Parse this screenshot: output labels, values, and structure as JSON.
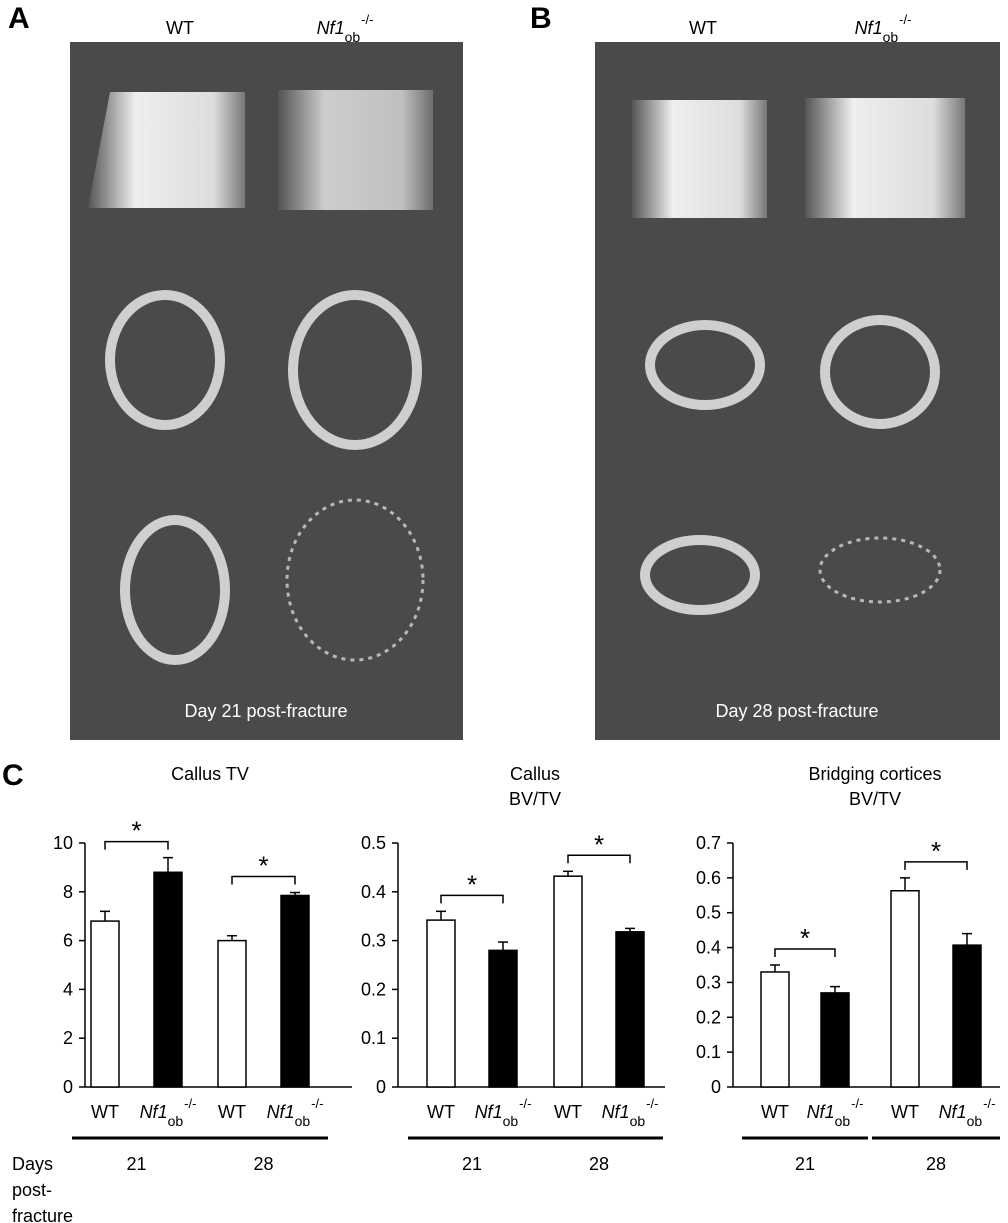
{
  "panels": [
    {
      "label": "A",
      "columns": [
        "WT",
        {
          "gene": "Nf1",
          "sub": "ob",
          "sup": "-/-"
        }
      ],
      "caption": "Day 21 post-fracture"
    },
    {
      "label": "B",
      "columns": [
        "WT",
        {
          "gene": "Nf1",
          "sub": "ob",
          "sup": "-/-"
        }
      ],
      "caption": "Day 28 post-fracture"
    }
  ],
  "panel_c_label": "C",
  "days_label": [
    "Days",
    "post-",
    "fracture"
  ],
  "chart_data": [
    {
      "type": "bar",
      "title": [
        "Callus TV"
      ],
      "categories": [
        "WT",
        {
          "gene": "Nf1",
          "sub": "ob",
          "sup": "-/-"
        },
        "WT",
        {
          "gene": "Nf1",
          "sub": "ob",
          "sup": "-/-"
        }
      ],
      "values": [
        6.8,
        8.8,
        6.0,
        7.85
      ],
      "errors": [
        0.4,
        0.6,
        0.2,
        0.12
      ],
      "colors": [
        "#ffffff",
        "#000000",
        "#ffffff",
        "#000000"
      ],
      "groups": [
        "21",
        "28"
      ],
      "significance": [
        "*",
        "*"
      ],
      "ylim": [
        0,
        10
      ],
      "yticks": [
        0,
        2,
        4,
        6,
        8,
        10
      ]
    },
    {
      "type": "bar",
      "title": [
        "Callus",
        "BV/TV"
      ],
      "categories": [
        "WT",
        {
          "gene": "Nf1",
          "sub": "ob",
          "sup": "-/-"
        },
        "WT",
        {
          "gene": "Nf1",
          "sub": "ob",
          "sup": "-/-"
        }
      ],
      "values": [
        0.342,
        0.28,
        0.432,
        0.318
      ],
      "errors": [
        0.018,
        0.017,
        0.01,
        0.007
      ],
      "colors": [
        "#ffffff",
        "#000000",
        "#ffffff",
        "#000000"
      ],
      "groups": [
        "21",
        "28"
      ],
      "significance": [
        "*",
        "*"
      ],
      "ylim": [
        0,
        0.5
      ],
      "yticks": [
        0,
        0.1,
        0.2,
        0.3,
        0.4,
        0.5
      ]
    },
    {
      "type": "bar",
      "title": [
        "Bridging cortices",
        "BV/TV"
      ],
      "categories": [
        "WT",
        {
          "gene": "Nf1",
          "sub": "ob",
          "sup": "-/-"
        },
        "WT",
        {
          "gene": "Nf1",
          "sub": "ob",
          "sup": "-/-"
        }
      ],
      "values": [
        0.33,
        0.27,
        0.563,
        0.407
      ],
      "errors": [
        0.02,
        0.018,
        0.037,
        0.033
      ],
      "colors": [
        "#ffffff",
        "#000000",
        "#ffffff",
        "#000000"
      ],
      "groups": [
        "21",
        "28"
      ],
      "significance": [
        "*",
        "*"
      ],
      "ylim": [
        0,
        0.7
      ],
      "yticks": [
        0,
        0.1,
        0.2,
        0.3,
        0.4,
        0.5,
        0.6,
        0.7
      ]
    }
  ]
}
